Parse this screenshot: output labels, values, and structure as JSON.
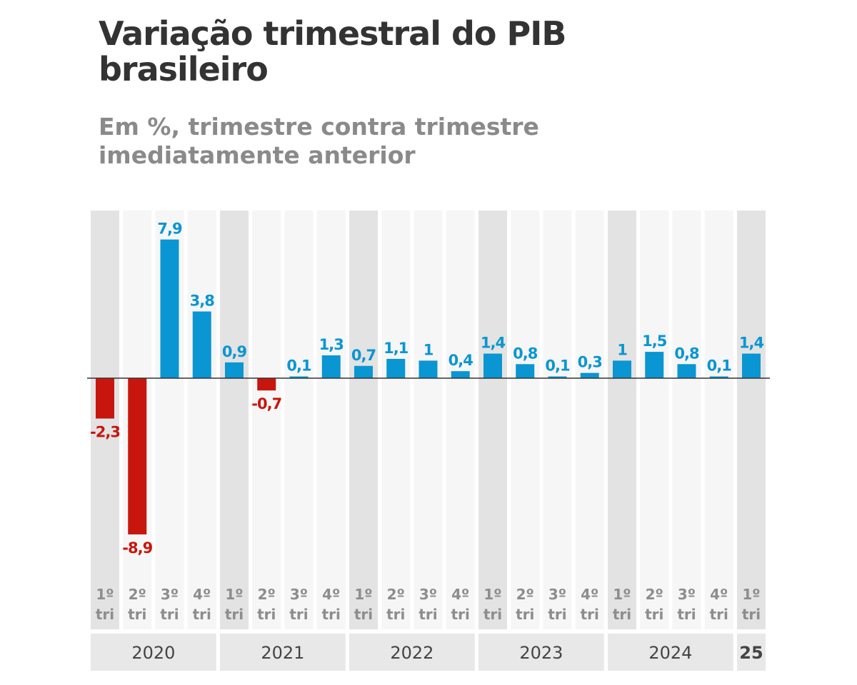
{
  "chart_data": {
    "type": "bar",
    "title": "Variação trimestral do PIB brasileiro",
    "subtitle": "Em %, trimestre contra trimestre imediatamente anterior",
    "quarter_labels": [
      "1º",
      "2º",
      "3º",
      "4º",
      "1º",
      "2º",
      "3º",
      "4º",
      "1º",
      "2º",
      "3º",
      "4º",
      "1º",
      "2º",
      "3º",
      "4º",
      "1º",
      "2º",
      "3º",
      "4º",
      "1º"
    ],
    "quarter_suffix": "tri",
    "years": [
      {
        "label": "2020",
        "quarters": 4
      },
      {
        "label": "2021",
        "quarters": 4
      },
      {
        "label": "2022",
        "quarters": 4
      },
      {
        "label": "2023",
        "quarters": 4
      },
      {
        "label": "2024",
        "quarters": 4
      },
      {
        "label": "25",
        "quarters": 1,
        "bold": true
      }
    ],
    "values": [
      -2.3,
      -8.9,
      7.9,
      3.8,
      0.9,
      -0.7,
      0.1,
      1.3,
      0.7,
      1.1,
      1,
      0.4,
      1.4,
      0.8,
      0.1,
      0.3,
      1,
      1.5,
      0.8,
      0.1,
      1.4
    ],
    "value_labels": [
      "-2,3",
      "-8,9",
      "7,9",
      "3,8",
      "0,9",
      "-0,7",
      "0,1",
      "1,3",
      "0,7",
      "1,1",
      "1",
      "0,4",
      "1,4",
      "0,8",
      "0,1",
      "0,3",
      "1",
      "1,5",
      "0,8",
      "0,1",
      "1,4"
    ],
    "ylim": [
      -9.5,
      9.5
    ],
    "grid": false,
    "colors": {
      "positive": "#0a96d2",
      "negative": "#c8160e",
      "year_first_column": "#e3e3e3",
      "column": "#f6f6f6",
      "year_band": "#e8e8e8"
    }
  }
}
